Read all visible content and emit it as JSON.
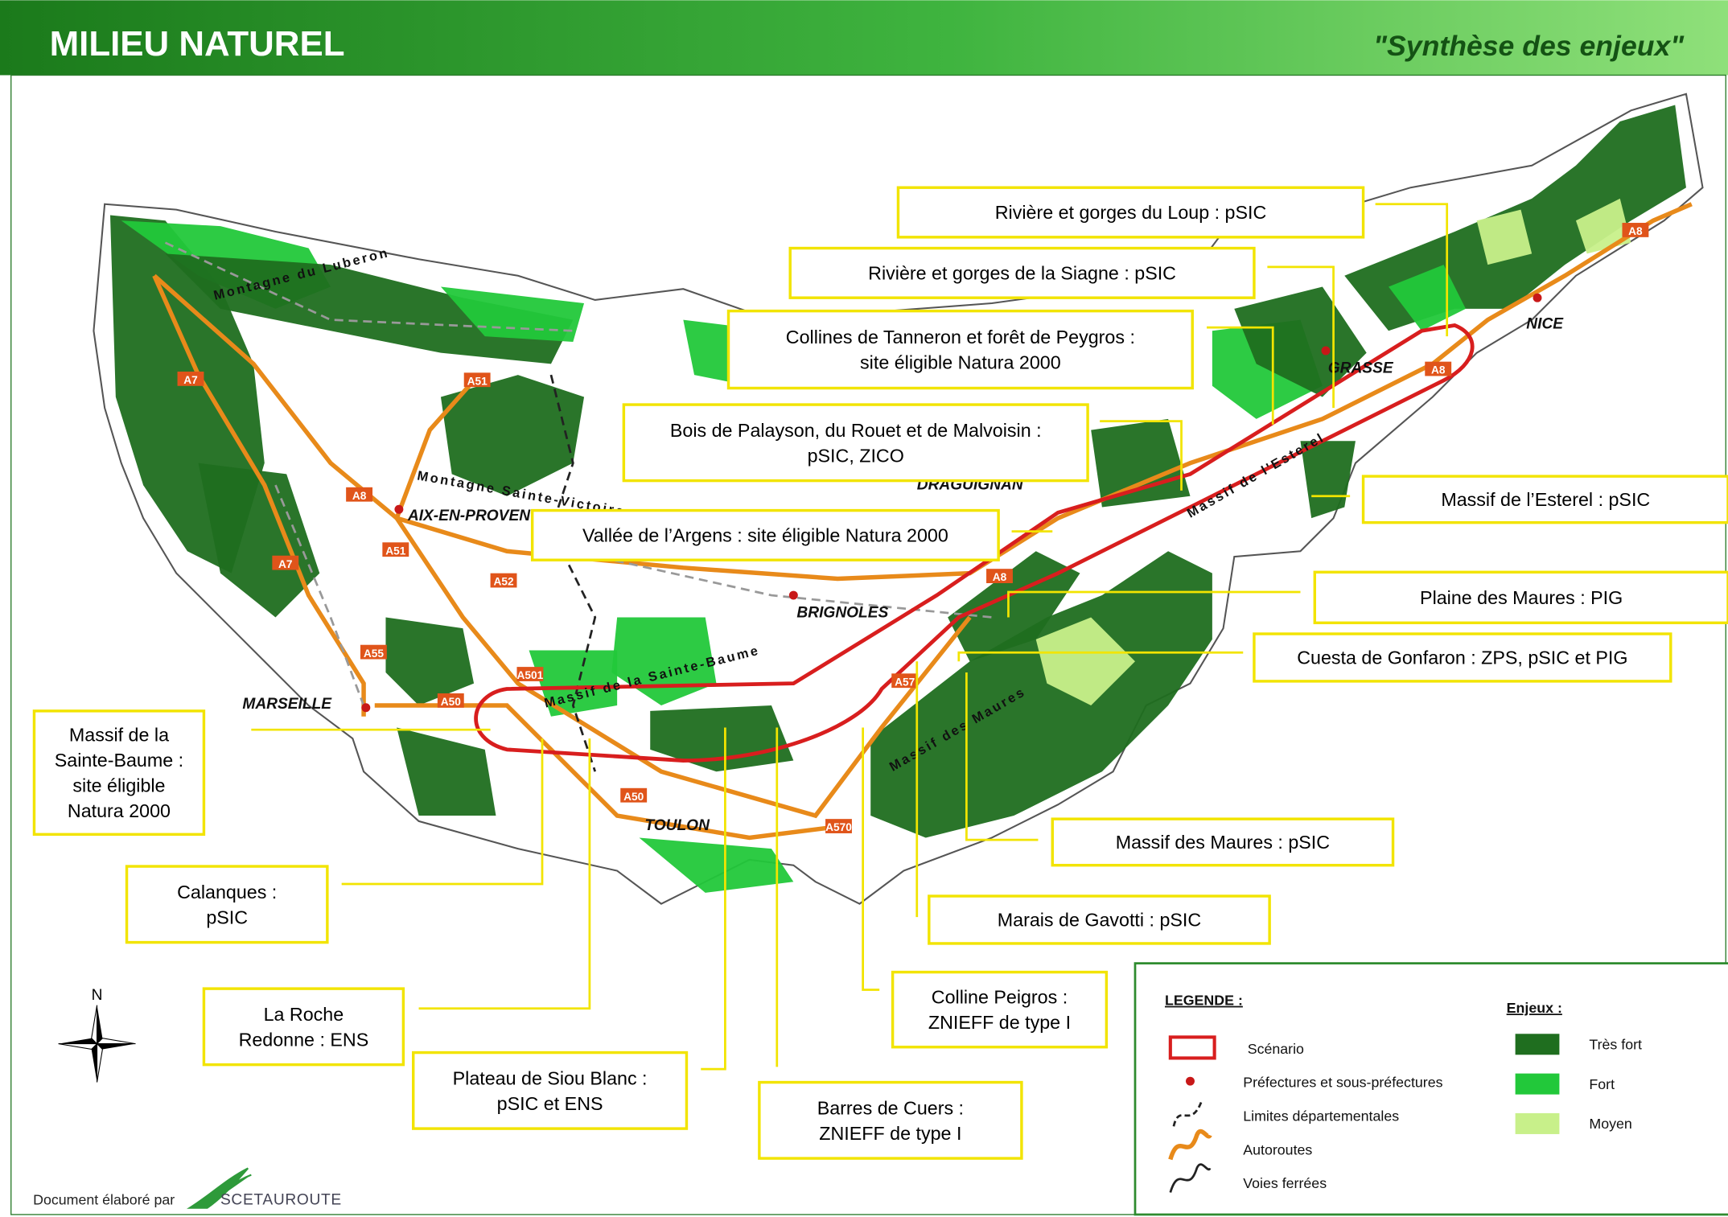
{
  "header": {
    "title": "MILIEU NATUREL",
    "subtitle": "\"Synthèse des enjeux\""
  },
  "map": {
    "cities": [
      "MARSEILLE",
      "AIX-EN-PROVENCE",
      "TOULON",
      "BRIGNOLES",
      "DRAGUIGNAN",
      "GRASSE",
      "NICE"
    ],
    "roads": [
      "A7",
      "A7",
      "A51",
      "A51",
      "A8",
      "A52",
      "A55",
      "A50",
      "A501",
      "A50",
      "A570",
      "A57",
      "A8",
      "A8",
      "A8"
    ],
    "reliefs": [
      "Montagne du Luberon",
      "Montagne Sainte-Victoire",
      "Massif de la Sainte-Baume",
      "Massif de l'Esterel",
      "Massif des Maures"
    ]
  },
  "callouts": [
    {
      "lines": [
        "Rivière et gorges du Loup : pSIC"
      ]
    },
    {
      "lines": [
        "Rivière et gorges de la Siagne : pSIC"
      ]
    },
    {
      "lines": [
        "Collines de Tanneron et forêt de Peygros :",
        "site éligible Natura 2000"
      ]
    },
    {
      "lines": [
        "Bois de Palayson, du Rouet et de Malvoisin :",
        "pSIC, ZICO"
      ]
    },
    {
      "lines": [
        "Vallée de l’Argens : site éligible Natura 2000"
      ]
    },
    {
      "lines": [
        "Massif de l’Esterel : pSIC"
      ]
    },
    {
      "lines": [
        "Plaine des Maures : PIG"
      ]
    },
    {
      "lines": [
        "Cuesta de Gonfaron : ZPS, pSIC et PIG"
      ]
    },
    {
      "lines": [
        "Massif de la",
        "Sainte-Baume :",
        "site éligible",
        "Natura 2000"
      ]
    },
    {
      "lines": [
        "Calanques :",
        "pSIC"
      ]
    },
    {
      "lines": [
        "La Roche",
        "Redonne : ENS"
      ]
    },
    {
      "lines": [
        "Plateau de Siou Blanc :",
        "pSIC et ENS"
      ]
    },
    {
      "lines": [
        "Barres de Cuers :",
        "ZNIEFF de type I"
      ]
    },
    {
      "lines": [
        "Colline Peigros :",
        "ZNIEFF de type I"
      ]
    },
    {
      "lines": [
        "Marais de Gavotti : pSIC"
      ]
    },
    {
      "lines": [
        "Massif des Maures : pSIC"
      ]
    }
  ],
  "legend": {
    "title": "LEGENDE :",
    "items": [
      "Scénario",
      "Préfectures et sous-préfectures",
      "Limites départementales",
      "Autoroutes",
      "Voies ferrées"
    ],
    "enjeux_title": "Enjeux :",
    "enjeux": [
      {
        "label": "Très fort",
        "color": "#1f6e1f"
      },
      {
        "label": "Fort",
        "color": "#22c83a"
      },
      {
        "label": "Moyen",
        "color": "#c8f08a"
      }
    ]
  },
  "compass": "N",
  "footer": {
    "text": "Document élaboré par",
    "logo": "SCETAUROUTE"
  }
}
